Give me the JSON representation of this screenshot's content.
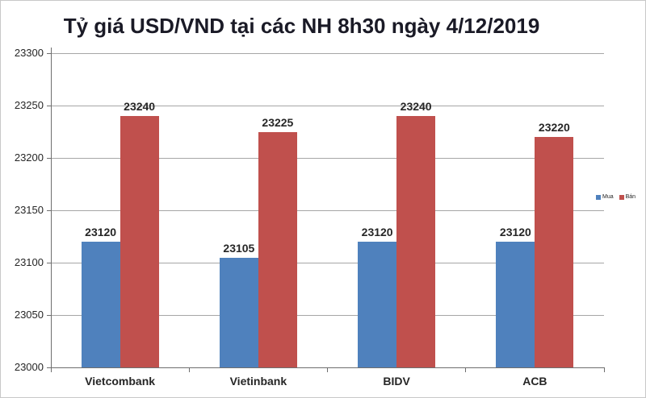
{
  "chart_data": {
    "type": "bar",
    "title": "Tỷ giá USD/VND tại các NH 8h30 ngày 4/12/2019",
    "categories": [
      "Vietcombank",
      "Vietinbank",
      "BIDV",
      "ACB"
    ],
    "series": [
      {
        "name": "Mua",
        "color": "#4F81BD",
        "values": [
          23120,
          23105,
          23120,
          23120
        ]
      },
      {
        "name": "Bán",
        "color": "#C0504D",
        "values": [
          23240,
          23225,
          23240,
          23220
        ]
      }
    ],
    "ylim": [
      23000,
      23300
    ],
    "ytick_step": 50,
    "ytick_labels": [
      "23000",
      "23050",
      "23100",
      "23150",
      "23200",
      "23250",
      "23300"
    ],
    "grid": true,
    "legend_position": "right",
    "show_data_labels": true
  },
  "colors": {
    "series_mua": "#4F81BD",
    "series_ban": "#C0504D",
    "gridline": "#A6A6A6",
    "axis": "#6E6E6E",
    "title_text": "#1A1A26",
    "label_text": "#262626",
    "legend_text": "#222222",
    "chart_border": "#C8C8C8",
    "background": "#FFFFFF"
  }
}
